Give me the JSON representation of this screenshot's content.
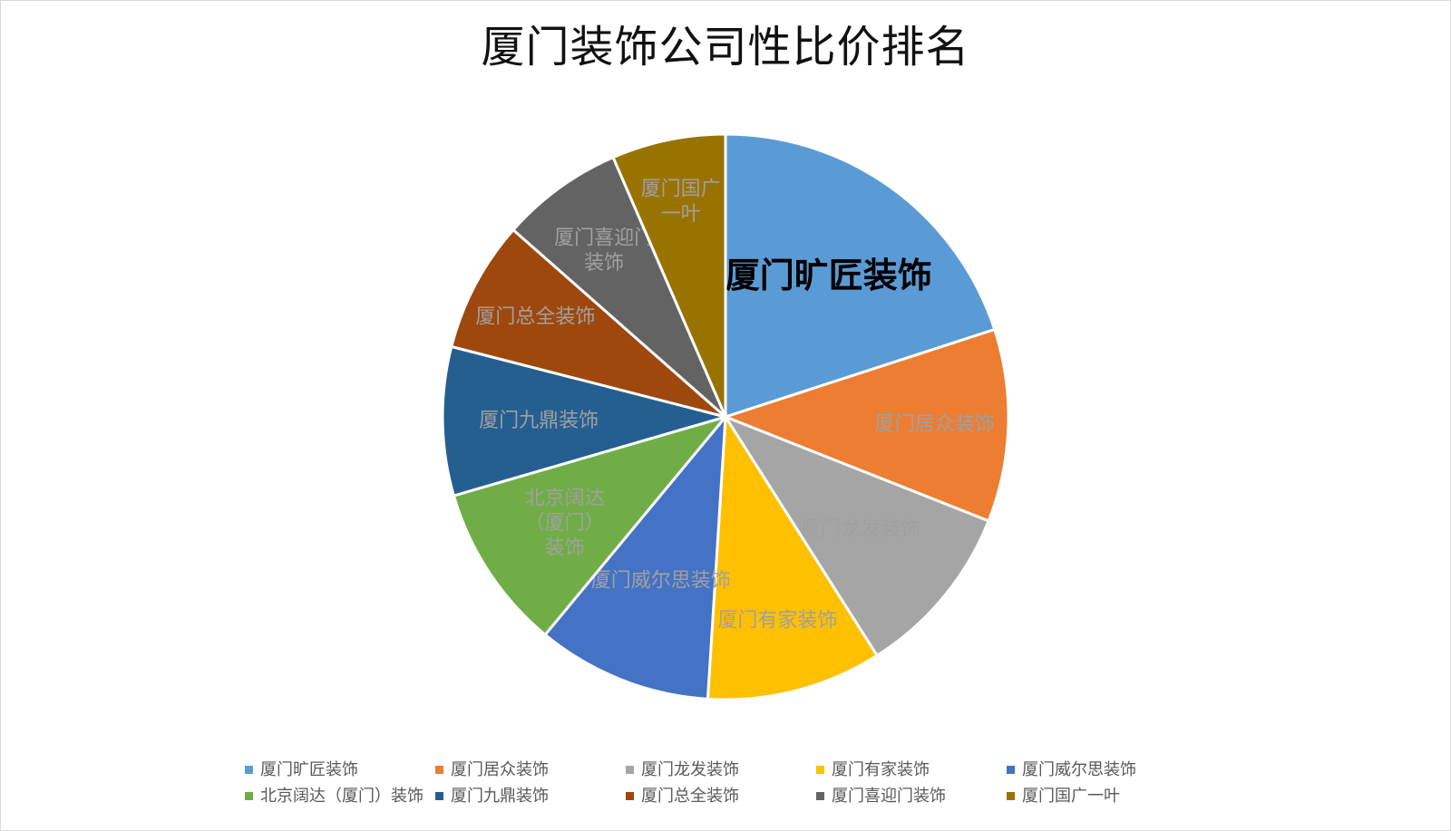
{
  "chart_data": {
    "type": "pie",
    "title": "厦门装饰公司性比价排名",
    "categories": [
      "厦门旷匠装饰",
      "厦门居众装饰",
      "厦门龙发装饰",
      "厦门有家装饰",
      "厦门威尔思装饰",
      "北京阔达（厦门）装饰",
      "厦门九鼎装饰",
      "厦门总全装饰",
      "厦门喜迎门装饰",
      "厦门国广一叶"
    ],
    "values": [
      20,
      11,
      10,
      10,
      10,
      9.5,
      8.5,
      7.5,
      7,
      6.5
    ],
    "colors": [
      "#5b9bd5",
      "#ed7d31",
      "#a5a5a5",
      "#ffc000",
      "#4472c4",
      "#70ad47",
      "#255e91",
      "#9e480e",
      "#636363",
      "#997300"
    ],
    "legend_position": "bottom"
  }
}
